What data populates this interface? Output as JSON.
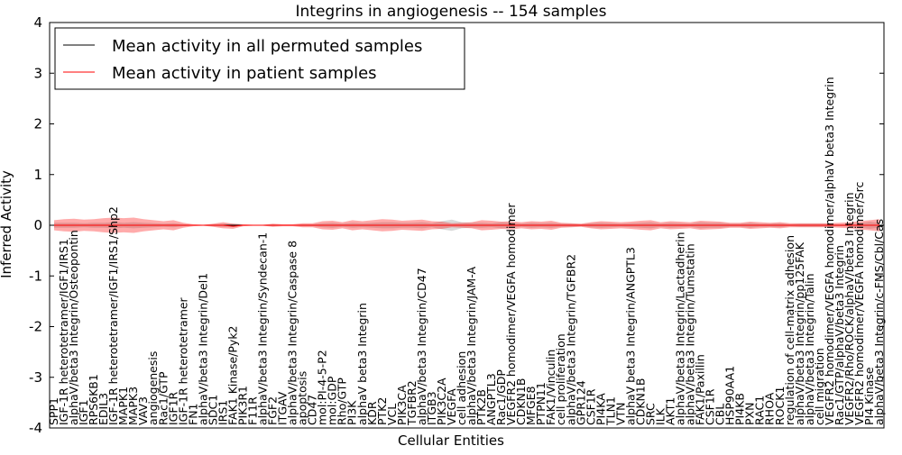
{
  "chart_data": {
    "type": "line",
    "title": "Integrins in angiogenesis -- 154 samples",
    "xlabel": "Cellular Entities",
    "ylabel": "Inferred Activity",
    "ylim": [
      -4,
      4
    ],
    "yticks": [
      "-4",
      "-3",
      "-2",
      "-1",
      "0",
      "1",
      "2",
      "3",
      "4"
    ],
    "ytick_values": [
      -4,
      -3,
      -2,
      -1,
      0,
      1,
      2,
      3,
      4
    ],
    "grid": false,
    "legend": {
      "placement": "top-left",
      "entries": [
        {
          "label": "Mean activity in all permuted samples",
          "color": "#000000"
        },
        {
          "label": "Mean activity in patient samples",
          "color": "#ff0000"
        }
      ]
    },
    "categories": [
      "SPP1",
      "IGF-1R heterotetramer/IGF1/IRS1",
      "alphaV/beta3 Integrin/Osteopontin",
      "IGF1",
      "RPS6KB1",
      "EDIL3",
      "IGF-1R heterotetramer/IGF1/IRS1/Shp2",
      "MAPK1",
      "MAPK3",
      "VAV3",
      "angiogenesis",
      "Rac1/GTP",
      "IGF1R",
      "IGF-1R heterotetramer",
      "FN1",
      "alphaV/beta3 Integrin/Del1",
      "SDC1",
      "IRS1",
      "FAK1 Kinase/Pyk2",
      "PIK3R1",
      "F11R",
      "alphaV/beta3 Integrin/Syndecan-1",
      "FGF2",
      "ITGAV",
      "alphaV/beta3 Integrin/Caspase 8",
      "apoptosis",
      "CD47",
      "mol:PI-4-5-P2",
      "mol:GDP",
      "Rho/GTP",
      "PI3K",
      "alphaV beta3 Integrin",
      "KDR",
      "PTK2",
      "VCL",
      "PIK3CA",
      "TGFBR2",
      "alphaV/beta3 Integrin/CD47",
      "ITGB3",
      "PIK3C2A",
      "VEGFA",
      "cell adhesion",
      "alphaV/beta3 Integrin/JAM-A",
      "PTK2B",
      "ANGPTL3",
      "Rac1/GDP",
      "VEGFR2 homodimer/VEGFA homodimer",
      "CDKN1B",
      "MFGE8",
      "PTPN11",
      "FAK1/Vinculin",
      "cell proliferation",
      "alphaV/beta3 Integrin/TGFBR2",
      "GPR124",
      "CSF1R",
      "PI4KA",
      "TLN1",
      "VTN",
      "alphaV beta3 Integrin/ANGPTL3",
      "CDKN1B",
      "SRC",
      "ILK",
      "AKT1",
      "alphaV/beta3 Integrin/Lactadherin",
      "alphaV/beta3 Integrin/Tumstatin",
      "FAK1/Paxillin",
      "CSF1R",
      "CBL",
      "HSP90AA1",
      "PI4KB",
      "PXN",
      "RAC1",
      "RHOA",
      "ROCK1",
      "regulation of cell-matrix adhesion",
      "alphaV/beta3 Integrin/pp125FAK",
      "alphaV/beta3 Integrin/Talin",
      "cell migration",
      "VEGFR2 homodimer/VEGFA homodimer/alphaV beta3 Integrin",
      "Rac1/GTP/alphaV/beta3 Integrin",
      "VEGFR2/Rho/ROCK/alphaV/beta3 Integrin",
      "VEGFR2 homodimer/VEGFA homodimer/Src",
      "PI4 Kinase",
      "alphaV/beta3 Integrin/c-FMS/Cbl/Cas"
    ],
    "series": [
      {
        "name": "Mean activity in all permuted samples",
        "color": "#000000",
        "values": [
          0.0,
          0.0,
          0.0,
          0.0,
          0.0,
          0.0,
          0.0,
          0.0,
          0.0,
          0.0,
          0.0,
          0.0,
          0.0,
          0.0,
          0.0,
          0.0,
          0.0,
          0.0,
          0.0,
          0.0,
          0.0,
          0.0,
          0.0,
          0.0,
          0.0,
          0.0,
          0.0,
          0.0,
          0.0,
          0.0,
          0.0,
          0.0,
          0.0,
          0.0,
          0.0,
          0.0,
          0.0,
          0.0,
          0.0,
          0.0,
          0.0,
          0.0,
          0.0,
          0.0,
          0.0,
          0.0,
          0.0,
          0.0,
          0.0,
          0.0,
          0.0,
          0.0,
          0.0,
          0.0,
          0.0,
          0.0,
          0.0,
          0.0,
          0.0,
          0.0,
          0.0,
          0.0,
          0.0,
          0.0,
          0.0,
          0.0,
          0.0,
          0.0,
          0.0,
          0.0,
          0.0,
          0.0,
          0.0,
          0.0,
          0.0,
          0.0,
          0.0,
          0.0,
          0.0,
          0.0,
          0.0,
          0.0,
          0.0,
          0.0
        ],
        "band": [
          0.05,
          0.05,
          0.05,
          0.04,
          0.05,
          0.05,
          0.06,
          0.05,
          0.06,
          0.05,
          0.04,
          0.03,
          0.04,
          0.02,
          0.01,
          0.01,
          0.02,
          0.03,
          0.03,
          0.01,
          0.01,
          0.01,
          0.02,
          0.01,
          0.01,
          0.02,
          0.02,
          0.04,
          0.05,
          0.03,
          0.05,
          0.04,
          0.05,
          0.06,
          0.06,
          0.05,
          0.05,
          0.06,
          0.04,
          0.08,
          0.11,
          0.06,
          0.05,
          0.05,
          0.04,
          0.06,
          0.05,
          0.03,
          0.05,
          0.04,
          0.05,
          0.03,
          0.03,
          0.02,
          0.04,
          0.05,
          0.04,
          0.03,
          0.04,
          0.05,
          0.06,
          0.03,
          0.05,
          0.04,
          0.03,
          0.06,
          0.05,
          0.05,
          0.03,
          0.03,
          0.05,
          0.03,
          0.03,
          0.04,
          0.02,
          0.03,
          0.03,
          0.03,
          0.03,
          0.02,
          0.02,
          0.04,
          0.07,
          0.05
        ]
      },
      {
        "name": "Mean activity in patient samples",
        "color": "#ff0000",
        "values": [
          0.0,
          0.0,
          0.0,
          0.0,
          0.0,
          0.0,
          0.0,
          0.0,
          0.0,
          0.0,
          0.0,
          0.0,
          0.0,
          0.0,
          0.0,
          0.0,
          0.0,
          0.0,
          -0.02,
          0.0,
          0.0,
          0.0,
          0.0,
          0.0,
          0.0,
          0.0,
          0.0,
          0.0,
          0.0,
          0.0,
          0.0,
          0.0,
          0.0,
          0.0,
          0.0,
          0.0,
          0.0,
          0.0,
          0.0,
          0.0,
          0.0,
          0.0,
          0.0,
          0.0,
          0.0,
          0.0,
          0.0,
          0.0,
          0.0,
          0.0,
          0.0,
          0.0,
          0.0,
          0.0,
          0.0,
          0.0,
          0.0,
          0.0,
          0.0,
          0.0,
          0.0,
          0.0,
          0.0,
          0.0,
          0.0,
          0.0,
          0.0,
          0.0,
          0.0,
          0.0,
          0.0,
          0.0,
          0.0,
          0.0,
          0.0,
          0.0,
          0.0,
          0.0,
          0.0,
          0.0,
          0.0,
          0.0,
          0.0,
          0.0
        ],
        "band": [
          0.1,
          0.12,
          0.13,
          0.11,
          0.12,
          0.14,
          0.15,
          0.14,
          0.15,
          0.12,
          0.1,
          0.08,
          0.1,
          0.05,
          0.02,
          0.01,
          0.03,
          0.06,
          0.05,
          0.02,
          0.01,
          0.01,
          0.03,
          0.02,
          0.02,
          0.04,
          0.04,
          0.08,
          0.09,
          0.06,
          0.1,
          0.08,
          0.1,
          0.12,
          0.11,
          0.09,
          0.1,
          0.11,
          0.08,
          0.07,
          0.04,
          0.05,
          0.06,
          0.1,
          0.09,
          0.07,
          0.08,
          0.06,
          0.08,
          0.07,
          0.09,
          0.05,
          0.04,
          0.03,
          0.06,
          0.08,
          0.07,
          0.06,
          0.07,
          0.09,
          0.1,
          0.06,
          0.08,
          0.07,
          0.06,
          0.09,
          0.08,
          0.07,
          0.05,
          0.05,
          0.07,
          0.06,
          0.05,
          0.06,
          0.04,
          0.04,
          0.04,
          0.04,
          0.04,
          0.05,
          0.06,
          0.08,
          0.1,
          0.12
        ]
      }
    ]
  }
}
